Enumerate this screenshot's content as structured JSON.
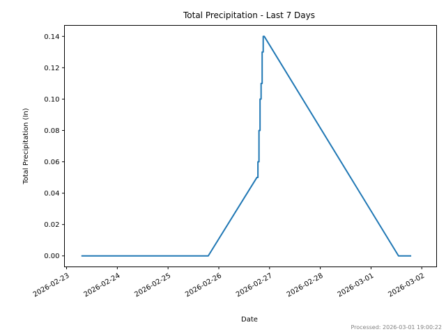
{
  "chart_data": {
    "type": "line",
    "title": "Total Precipitation - Last 7 Days",
    "xlabel": "Date",
    "ylabel": "Total Precipitation (In)",
    "x_ticks": [
      "2026-02-23",
      "2026-02-24",
      "2026-02-25",
      "2026-02-26",
      "2026-02-27",
      "2026-02-28",
      "2026-03-01",
      "2026-03-02"
    ],
    "y_ticks": [
      "0.00",
      "0.02",
      "0.04",
      "0.06",
      "0.08",
      "0.10",
      "0.12",
      "0.14"
    ],
    "ylim": [
      -0.007,
      0.147
    ],
    "xlim": [
      "2026-02-22 23:00",
      "2026-03-02 07:00"
    ],
    "grid": false,
    "color": "#1f77b4",
    "series": [
      {
        "points": [
          [
            "2026-02-23 07:00",
            0.0
          ],
          [
            "2026-02-25 19:00",
            0.0
          ],
          [
            "2026-02-26 18:00",
            0.05
          ],
          [
            "2026-02-26 18:30",
            0.05
          ],
          [
            "2026-02-26 18:30",
            0.06
          ],
          [
            "2026-02-26 19:00",
            0.06
          ],
          [
            "2026-02-26 19:00",
            0.08
          ],
          [
            "2026-02-26 19:30",
            0.08
          ],
          [
            "2026-02-26 19:30",
            0.1
          ],
          [
            "2026-02-26 20:00",
            0.1
          ],
          [
            "2026-02-26 20:00",
            0.11
          ],
          [
            "2026-02-26 20:30",
            0.11
          ],
          [
            "2026-02-26 20:30",
            0.13
          ],
          [
            "2026-02-26 21:00",
            0.13
          ],
          [
            "2026-02-26 21:00",
            0.14
          ],
          [
            "2026-02-26 21:30",
            0.14
          ],
          [
            "2026-03-01 13:00",
            0.0
          ],
          [
            "2026-03-01 19:00",
            0.0
          ]
        ]
      }
    ]
  },
  "footer": {
    "processed": "Processed: 2026-03-01 19:00:22"
  }
}
